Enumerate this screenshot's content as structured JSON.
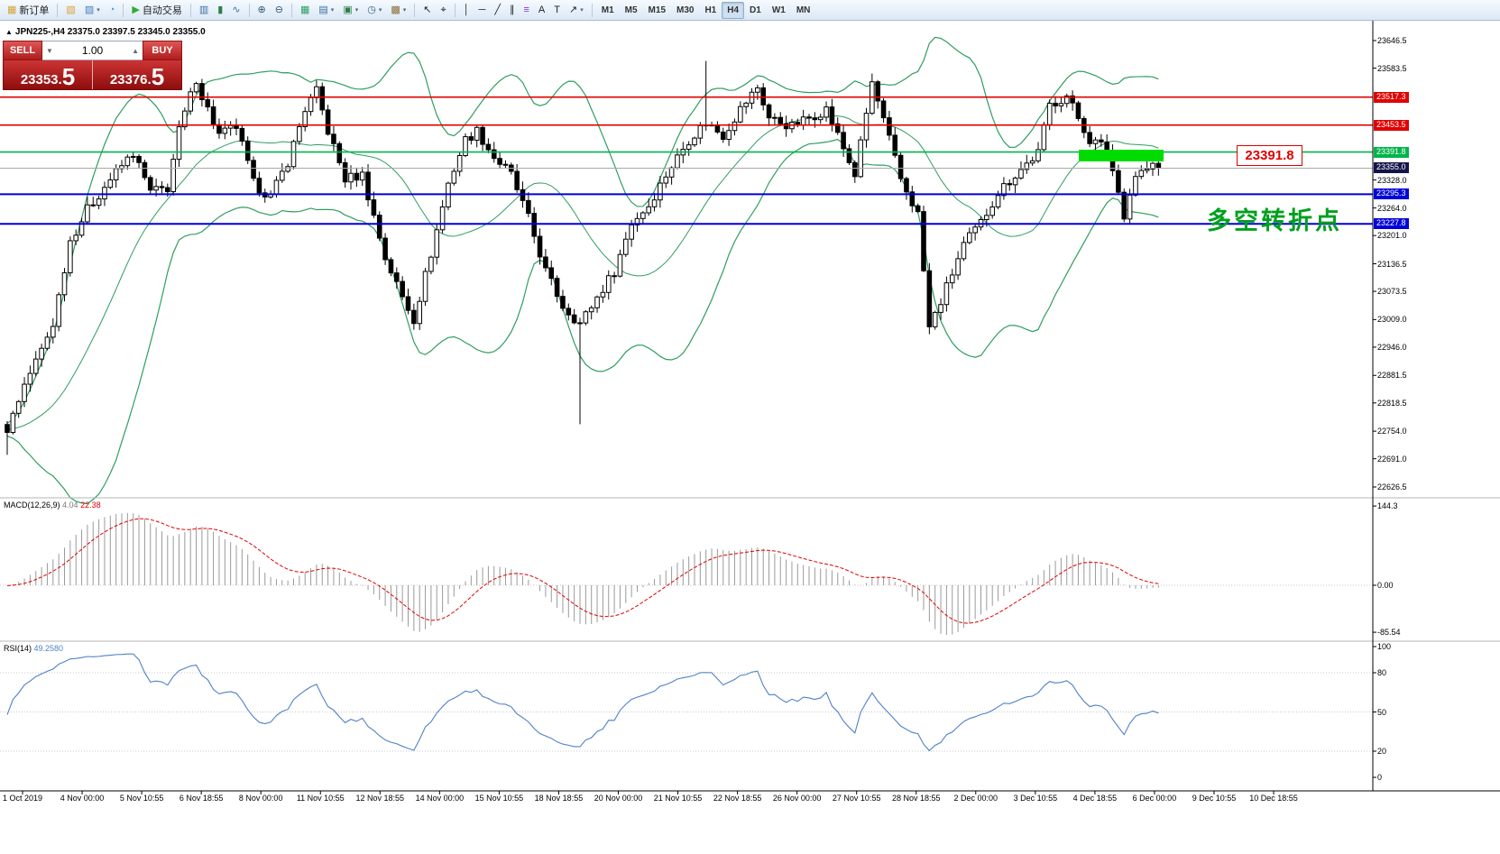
{
  "toolbar": {
    "groups": [
      {
        "items": [
          {
            "name": "new-order-button",
            "icon": "new-order-icon",
            "glyph": "▦",
            "glyph_color": "#d9a43b",
            "label": "新订单"
          }
        ]
      },
      {
        "items": [
          {
            "name": "new-chart-button",
            "icon": "new-chart-icon",
            "glyph": "▧",
            "glyph_color": "#d9a43b"
          },
          {
            "name": "profiles-button",
            "icon": "profiles-icon",
            "glyph": "▨",
            "glyph_color": "#4a7ebb",
            "caret": true
          },
          {
            "name": "refresh-button",
            "icon": "refresh-icon",
            "glyph": "◔",
            "glyph_color": "#3aa0d8"
          }
        ]
      },
      {
        "items": [
          {
            "name": "autotrading-button",
            "icon": "autotrading-icon",
            "glyph": "▶",
            "glyph_color": "#2faa2f",
            "label": "自动交易"
          }
        ]
      },
      {
        "items": [
          {
            "name": "bar-chart-button",
            "icon": "bar-chart-icon",
            "glyph": "▥",
            "glyph_color": "#3b6ea5"
          },
          {
            "name": "candlestick-chart-button",
            "icon": "candlestick-icon",
            "glyph": "▮",
            "glyph_color": "#2f7d46"
          },
          {
            "name": "line-chart-button",
            "icon": "line-chart-icon",
            "glyph": "∿",
            "glyph_color": "#3b6ea5"
          }
        ]
      },
      {
        "items": [
          {
            "name": "zoom-in-button",
            "icon": "zoom-in-icon",
            "glyph": "⊕",
            "glyph_color": "#33557d"
          },
          {
            "name": "zoom-out-button",
            "icon": "zoom-out-icon",
            "glyph": "⊖",
            "glyph_color": "#33557d"
          }
        ]
      },
      {
        "items": [
          {
            "name": "grid-button",
            "icon": "grid-icon",
            "glyph": "▦",
            "glyph_color": "#2f9e5f"
          },
          {
            "name": "tile-windows-button",
            "icon": "tile-windows-icon",
            "glyph": "▤",
            "glyph_color": "#3b6ea5",
            "caret": true
          },
          {
            "name": "indicators-button",
            "icon": "indicators-icon",
            "glyph": "▣",
            "glyph_color": "#2f7d46",
            "caret": true
          },
          {
            "name": "period-button",
            "icon": "clock-icon",
            "glyph": "◷",
            "glyph_color": "#33557d",
            "caret": true
          },
          {
            "name": "templates-button",
            "icon": "template-icon",
            "glyph": "▩",
            "glyph_color": "#8a6d3b",
            "caret": true
          }
        ]
      },
      {
        "items": [
          {
            "name": "cursor-button",
            "icon": "cursor-icon",
            "glyph": "↖",
            "glyph_color": "#222222"
          },
          {
            "name": "crosshair-button",
            "icon": "crosshair-icon",
            "glyph": "⌖",
            "glyph_color": "#222222"
          }
        ]
      },
      {
        "items": [
          {
            "name": "vertical-line-button",
            "icon": "vertical-line-icon",
            "glyph": "│",
            "glyph_color": "#222222"
          },
          {
            "name": "horizontal-line-button",
            "icon": "horizontal-line-icon",
            "glyph": "─",
            "glyph_color": "#222222"
          },
          {
            "name": "trendline-button",
            "icon": "trendline-icon",
            "glyph": "╱",
            "glyph_color": "#222222"
          },
          {
            "name": "channel-button",
            "icon": "channel-icon",
            "glyph": "∥",
            "glyph_color": "#222222"
          },
          {
            "name": "fibonacci-button",
            "icon": "fibonacci-icon",
            "glyph": "≡",
            "glyph_color": "#8a2be2"
          },
          {
            "name": "text-button",
            "icon": "text-icon",
            "glyph": "A",
            "glyph_color": "#222222"
          },
          {
            "name": "label-button",
            "icon": "label-icon",
            "glyph": "T",
            "glyph_color": "#222222"
          },
          {
            "name": "shapes-button",
            "icon": "arrow-shape-icon",
            "glyph": "↗",
            "glyph_color": "#222222",
            "caret": true
          }
        ]
      }
    ],
    "timeframes": [
      "M1",
      "M5",
      "M15",
      "M30",
      "H1",
      "H4",
      "D1",
      "W1",
      "MN"
    ],
    "active_timeframe": "H4"
  },
  "chart": {
    "title": "JPN225-,H4",
    "ohlc": "23375.0 23397.5 23345.0 23355.0",
    "trade_panel": {
      "sell_label": "SELL",
      "buy_label": "BUY",
      "lot_size": "1.00",
      "sell_price": "23353.",
      "sell_price_big": "5",
      "buy_price": "23376.",
      "buy_price_big": "5"
    },
    "annotations": {
      "price_callout": "23391.8",
      "cn_note": "多空转折点"
    },
    "levels": [
      {
        "t": "23517.3",
        "p": 23517.3,
        "color": "#e00000",
        "w": 1.6
      },
      {
        "t": "23453.5",
        "p": 23453.5,
        "color": "#e00000",
        "w": 1.6
      },
      {
        "t": "23391.8",
        "p": 23391.8,
        "color": "#00b44a",
        "w": 1.6
      },
      {
        "t": "23295.3",
        "p": 23295.3,
        "color": "#0000d8",
        "w": 2
      },
      {
        "t": "23227.8",
        "p": 23227.8,
        "color": "#0000d8",
        "w": 2
      }
    ],
    "current_price": {
      "t": "23355.0",
      "p": 23355.0,
      "line": "#a8a8a8",
      "tag_bg": "#14144a"
    },
    "price_axis_labels": [
      {
        "t": "23646.5",
        "p": 23646.5
      },
      {
        "t": "23583.5",
        "p": 23583.5
      },
      {
        "t": "23328.0",
        "p": 23328.0
      },
      {
        "t": "23264.0",
        "p": 23264.0
      },
      {
        "t": "23201.0",
        "p": 23201.0
      },
      {
        "t": "23136.5",
        "p": 23136.5
      },
      {
        "t": "23073.5",
        "p": 23073.5
      },
      {
        "t": "23009.0",
        "p": 23009.0
      },
      {
        "t": "22946.0",
        "p": 22946.0
      },
      {
        "t": "22881.5",
        "p": 22881.5
      },
      {
        "t": "22818.5",
        "p": 22818.5
      },
      {
        "t": "22754.0",
        "p": 22754.0
      },
      {
        "t": "22691.0",
        "p": 22691.0
      },
      {
        "t": "22626.5",
        "p": 22626.5
      }
    ]
  },
  "macd": {
    "name": "MACD(12,26,9)",
    "value_main": "4.04",
    "value_signal": "22.38",
    "axis": [
      {
        "t": "144.3",
        "v": 144.3
      },
      {
        "t": "0.00",
        "v": 0
      },
      {
        "t": "-85.54",
        "v": -85.54
      }
    ]
  },
  "rsi": {
    "name": "RSI(14)",
    "value": "49.2580",
    "axis": [
      {
        "t": "100",
        "v": 100
      },
      {
        "t": "80",
        "v": 80
      },
      {
        "t": "50",
        "v": 50
      },
      {
        "t": "20",
        "v": 20
      },
      {
        "t": "0",
        "v": 0
      }
    ],
    "levels": [
      80,
      50,
      20
    ]
  },
  "time_axis": [
    "1 Oct 2019",
    "4 Nov 00:00",
    "5 Nov 10:55",
    "6 Nov 18:55",
    "8 Nov 00:00",
    "11 Nov 10:55",
    "12 Nov 18:55",
    "14 Nov 00:00",
    "15 Nov 10:55",
    "18 Nov 18:55",
    "20 Nov 00:00",
    "21 Nov 10:55",
    "22 Nov 18:55",
    "26 Nov 00:00",
    "27 Nov 10:55",
    "28 Nov 18:55",
    "2 Dec 00:00",
    "3 Dec 10:55",
    "4 Dec 18:55",
    "6 Dec 00:00",
    "9 Dec 10:55",
    "10 Dec 18:55"
  ],
  "colors": {
    "bollinger": "#2f9e5f",
    "candle": "#000000",
    "macd_hist": "#9a9a9a",
    "macd_signal": "#e00000",
    "rsi_line": "#4f81c7",
    "bid_line": "#a8a8a8",
    "bid_tag_bg": "#14144a",
    "highlight_rect": "#00dc00",
    "callout": "#e00000",
    "cn_note": "#00a01e"
  },
  "chart_data": {
    "type": "candlestick-with-indicators",
    "symbol": "JPN225-",
    "period": "H4",
    "price_range": {
      "top": 23646.5,
      "bottom": 22626.5
    },
    "candle_count": 202,
    "close_waypoints": [
      [
        0,
        22760
      ],
      [
        3,
        22860
      ],
      [
        6,
        22940
      ],
      [
        8,
        23000
      ],
      [
        11,
        23190
      ],
      [
        14,
        23260
      ],
      [
        18,
        23330
      ],
      [
        22,
        23390
      ],
      [
        25,
        23300
      ],
      [
        28,
        23310
      ],
      [
        30,
        23440
      ],
      [
        33,
        23560
      ],
      [
        34,
        23520
      ],
      [
        37,
        23430
      ],
      [
        40,
        23450
      ],
      [
        43,
        23320
      ],
      [
        46,
        23290
      ],
      [
        49,
        23370
      ],
      [
        52,
        23490
      ],
      [
        54,
        23530
      ],
      [
        56,
        23440
      ],
      [
        59,
        23330
      ],
      [
        62,
        23340
      ],
      [
        66,
        23150
      ],
      [
        69,
        23060
      ],
      [
        71,
        23010
      ],
      [
        74,
        23160
      ],
      [
        77,
        23320
      ],
      [
        80,
        23420
      ],
      [
        82,
        23440
      ],
      [
        85,
        23380
      ],
      [
        88,
        23340
      ],
      [
        91,
        23240
      ],
      [
        94,
        23120
      ],
      [
        97,
        23040
      ],
      [
        100,
        23000
      ],
      [
        103,
        23060
      ],
      [
        106,
        23120
      ],
      [
        109,
        23230
      ],
      [
        112,
        23270
      ],
      [
        115,
        23340
      ],
      [
        119,
        23420
      ],
      [
        122,
        23460
      ],
      [
        125,
        23430
      ],
      [
        128,
        23490
      ],
      [
        131,
        23540
      ],
      [
        133,
        23470
      ],
      [
        137,
        23450
      ],
      [
        140,
        23470
      ],
      [
        143,
        23490
      ],
      [
        146,
        23400
      ],
      [
        148,
        23340
      ],
      [
        151,
        23550
      ],
      [
        154,
        23420
      ],
      [
        156,
        23330
      ],
      [
        159,
        23250
      ],
      [
        161,
        22990
      ],
      [
        163,
        23050
      ],
      [
        167,
        23180
      ],
      [
        170,
        23230
      ],
      [
        173,
        23300
      ],
      [
        176,
        23340
      ],
      [
        180,
        23390
      ],
      [
        182,
        23500
      ],
      [
        185,
        23520
      ],
      [
        189,
        23420
      ],
      [
        192,
        23400
      ],
      [
        195,
        23250
      ],
      [
        197,
        23340
      ],
      [
        200,
        23360
      ],
      [
        201,
        23355
      ]
    ],
    "special_wicks": [
      {
        "i": 0,
        "low": 22700
      },
      {
        "i": 100,
        "low": 22770
      },
      {
        "i": 122,
        "high": 23600
      }
    ],
    "indicators": [
      "Bollinger Bands(20,2)",
      "MACD(12,26,9)",
      "RSI(14)"
    ]
  }
}
